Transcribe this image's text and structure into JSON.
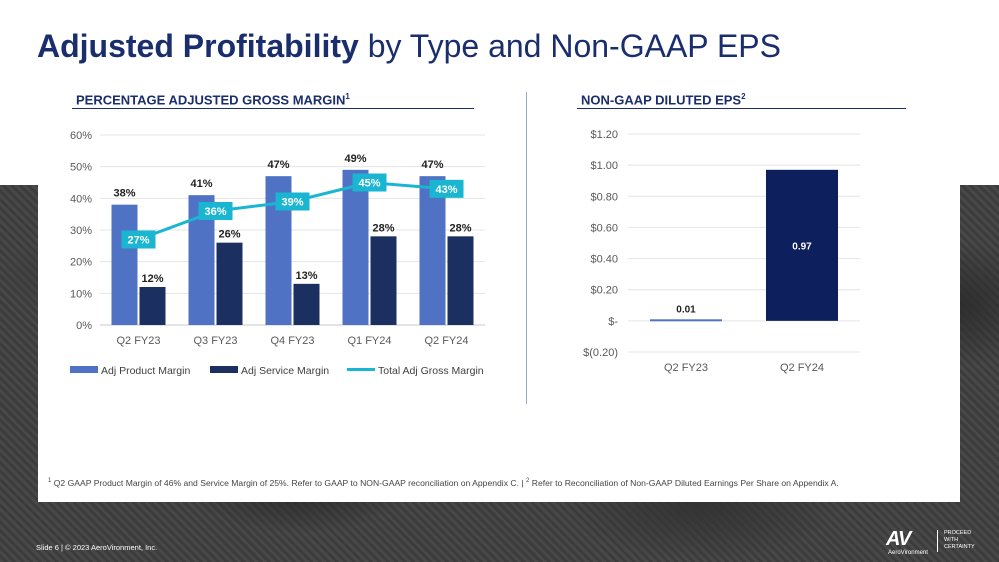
{
  "slide": {
    "title_bold": "Adjusted Profitability",
    "title_rest": " by Type and Non-GAAP EPS",
    "footnote1": "Q2 GAAP Product Margin of 46% and Service Margin of 25%. Refer to GAAP to NON-GAAP reconciliation on Appendix C.  |",
    "footnote2": "Refer to Reconciliation of Non-GAAP Diluted Earnings Per Share on Appendix A.",
    "footnote1_mark": "1",
    "footnote2_mark": "2",
    "footer": "Slide 6   |  © 2023 AeroVironment, Inc.",
    "logo_mark": "AV",
    "logo_word": "AeroVironment",
    "tagline": [
      "PROCEED",
      "WITH",
      "CERTAINTY"
    ]
  },
  "colors": {
    "title": "#1a2e6e",
    "product": "#4f72c4",
    "service": "#1b3060",
    "total": "#1ab6d1",
    "eps_bar": "#0d1f5c",
    "eps_small": "#5276c6"
  },
  "chart_data": [
    {
      "type": "bar",
      "title": "PERCENTAGE ADJUSTED GROSS MARGIN",
      "title_sup": "1",
      "categories": [
        "Q2 FY23",
        "Q3 FY23",
        "Q4 FY23",
        "Q1 FY24",
        "Q2 FY24"
      ],
      "series": [
        {
          "name": "Adj Product Margin",
          "kind": "bar",
          "values": [
            38,
            41,
            47,
            49,
            47
          ],
          "labels": [
            "38%",
            "41%",
            "47%",
            "49%",
            "47%"
          ]
        },
        {
          "name": "Adj Service Margin",
          "kind": "bar",
          "values": [
            12,
            26,
            13,
            28,
            28
          ],
          "labels": [
            "12%",
            "26%",
            "13%",
            "28%",
            "28%"
          ]
        },
        {
          "name": "Total Adj Gross Margin",
          "kind": "line",
          "values": [
            27,
            36,
            39,
            45,
            43
          ],
          "labels": [
            "27%",
            "36%",
            "39%",
            "45%",
            "43%"
          ]
        }
      ],
      "ylim": [
        0,
        60
      ],
      "yticks": [
        "0%",
        "10%",
        "20%",
        "30%",
        "40%",
        "50%",
        "60%"
      ],
      "legend": "bottom"
    },
    {
      "type": "bar",
      "title": "NON-GAAP DILUTED EPS",
      "title_sup": "2",
      "categories": [
        "Q2 FY23",
        "Q2 FY24"
      ],
      "values": [
        0.01,
        0.97
      ],
      "labels": [
        "0.01",
        "0.97"
      ],
      "ylim": [
        -0.2,
        1.2
      ],
      "yticks": [
        "$(0.20)",
        "$-",
        "$0.20",
        "$0.40",
        "$0.60",
        "$0.80",
        "$1.00",
        "$1.20"
      ]
    }
  ]
}
